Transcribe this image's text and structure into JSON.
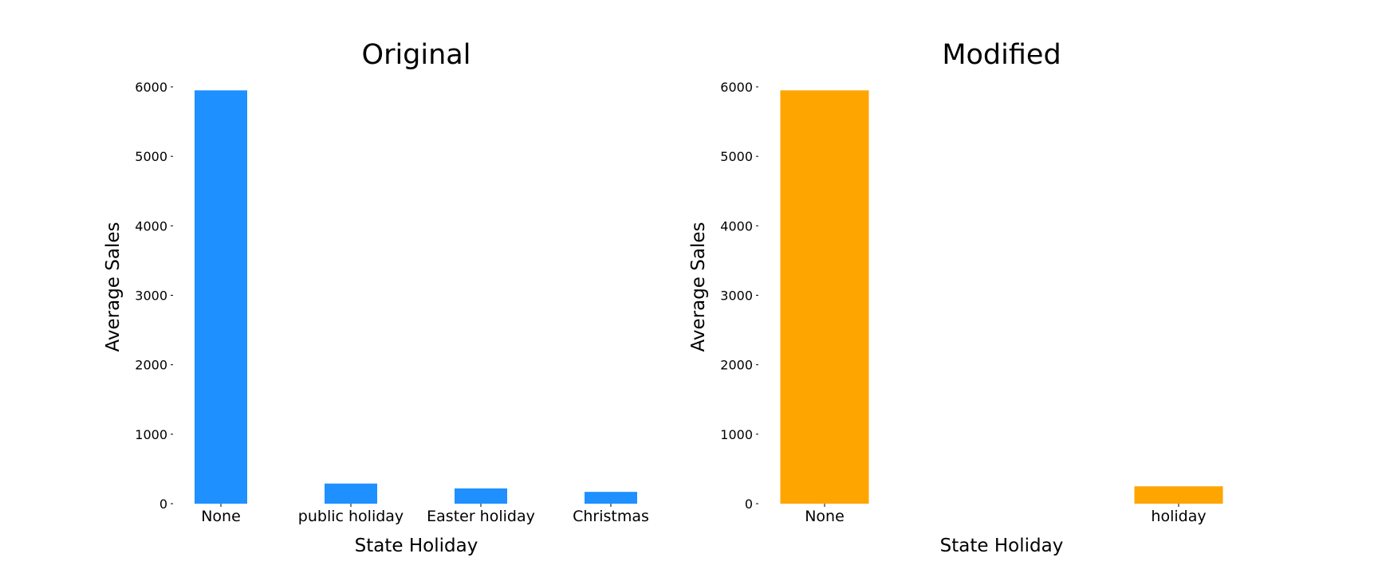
{
  "chart_data": [
    {
      "type": "bar",
      "title": "Original",
      "xlabel": "State Holiday",
      "ylabel": "Average Sales",
      "categories": [
        "None",
        "public holiday",
        "Easter holiday",
        "Christmas"
      ],
      "values": [
        5950,
        290,
        220,
        170
      ],
      "ylim": [
        0,
        6000
      ],
      "yticks": [
        0,
        1000,
        2000,
        3000,
        4000,
        5000,
        6000
      ],
      "color": "#1E90FF",
      "grid": false,
      "legend": "none"
    },
    {
      "type": "bar",
      "title": "Modified",
      "xlabel": "State Holiday",
      "ylabel": "Average Sales",
      "categories": [
        "None",
        "holiday"
      ],
      "values": [
        5950,
        250
      ],
      "ylim": [
        0,
        6000
      ],
      "yticks": [
        0,
        1000,
        2000,
        3000,
        4000,
        5000,
        6000
      ],
      "color": "#FFA500",
      "grid": false,
      "legend": "none"
    }
  ]
}
